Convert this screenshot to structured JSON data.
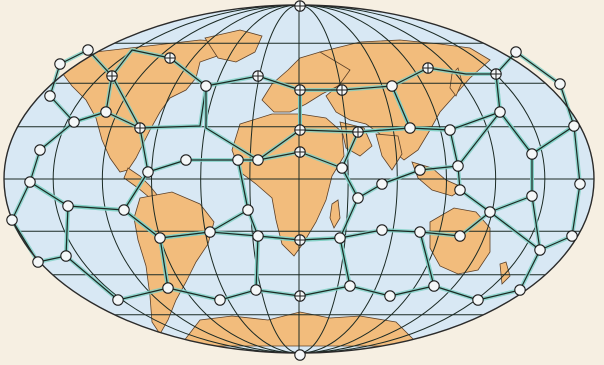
{
  "colors": {
    "paper": "#f6efe2",
    "ocean": "#d8e8f4",
    "land": "#f2bc7c",
    "land_stroke": "#5c4028",
    "graticule": "#1b2a24",
    "outline": "#2b2b2b",
    "node_fill": "#f4f7f8",
    "node_stroke": "#1d1d1d",
    "hex_glow": "#7fcfc4"
  },
  "icons": {
    "node": "circled-plus-marker"
  }
}
